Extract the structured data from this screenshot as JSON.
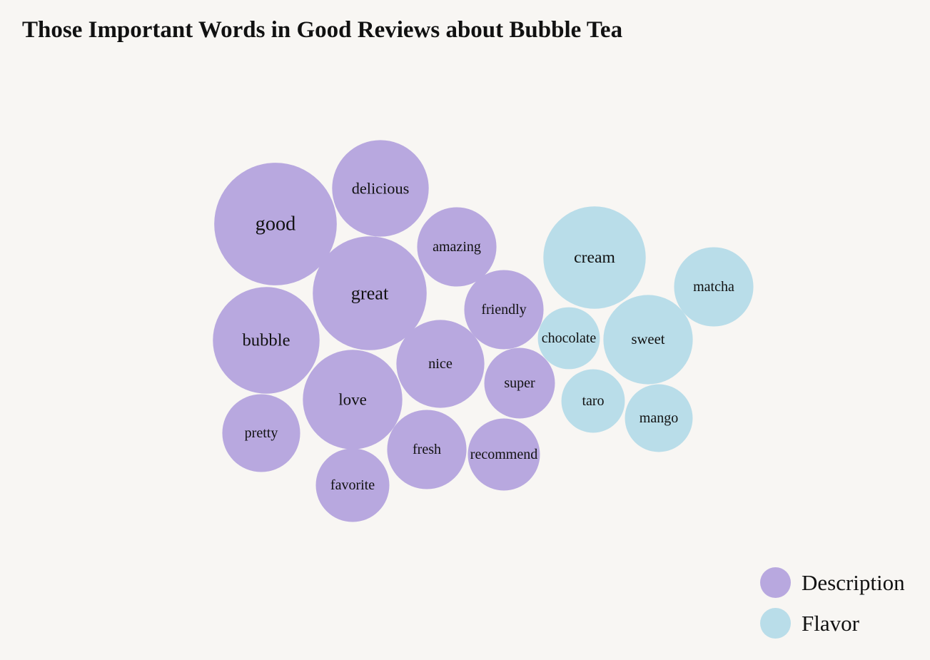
{
  "chart_data": {
    "type": "bubble",
    "title": "Those Important Words in Good Reviews about Bubble Tea",
    "groups": [
      {
        "name": "Description",
        "color": "#b8a8df"
      },
      {
        "name": "Flavor",
        "color": "#b9dde9"
      }
    ],
    "words": [
      {
        "label": "good",
        "group": "Description",
        "value": 85
      },
      {
        "label": "great",
        "group": "Description",
        "value": 79
      },
      {
        "label": "bubble",
        "group": "Description",
        "value": 74
      },
      {
        "label": "love",
        "group": "Description",
        "value": 69
      },
      {
        "label": "delicious",
        "group": "Description",
        "value": 67
      },
      {
        "label": "nice",
        "group": "Description",
        "value": 61
      },
      {
        "label": "fresh",
        "group": "Description",
        "value": 55
      },
      {
        "label": "amazing",
        "group": "Description",
        "value": 55
      },
      {
        "label": "friendly",
        "group": "Description",
        "value": 55
      },
      {
        "label": "pretty",
        "group": "Description",
        "value": 54
      },
      {
        "label": "favorite",
        "group": "Description",
        "value": 51
      },
      {
        "label": "recommend",
        "group": "Description",
        "value": 50
      },
      {
        "label": "super",
        "group": "Description",
        "value": 49
      },
      {
        "label": "cream",
        "group": "Flavor",
        "value": 71
      },
      {
        "label": "sweet",
        "group": "Flavor",
        "value": 62
      },
      {
        "label": "matcha",
        "group": "Flavor",
        "value": 55
      },
      {
        "label": "mango",
        "group": "Flavor",
        "value": 47
      },
      {
        "label": "taro",
        "group": "Flavor",
        "value": 44
      },
      {
        "label": "chocolate",
        "group": "Flavor",
        "value": 43
      }
    ]
  }
}
